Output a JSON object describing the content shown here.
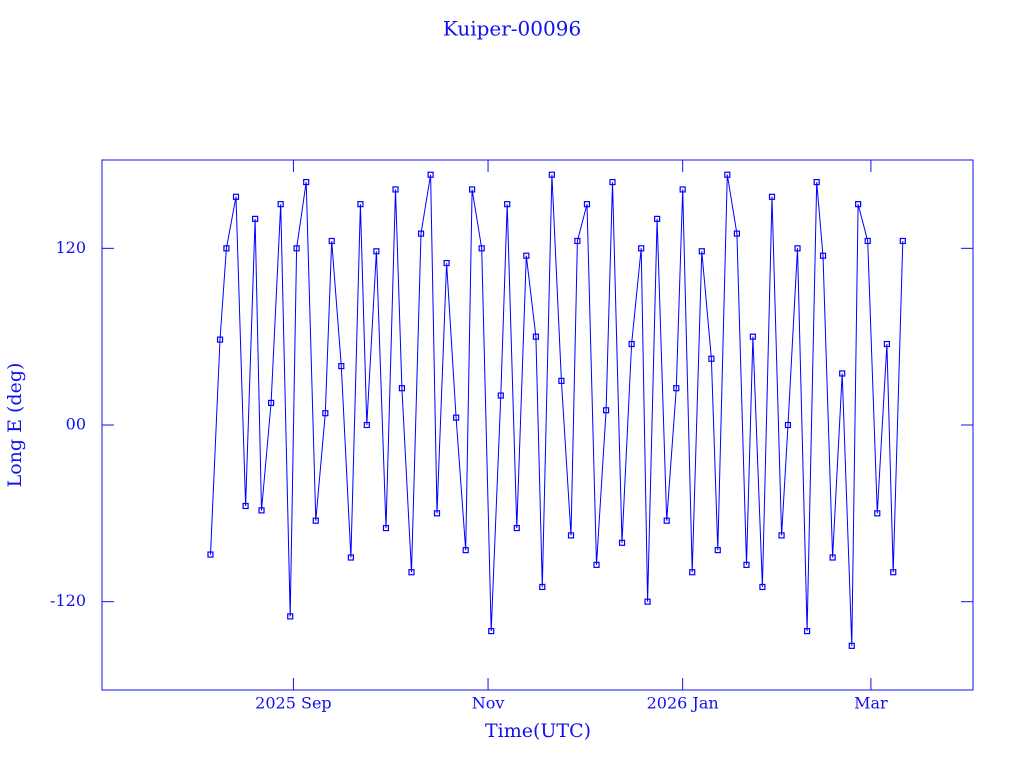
{
  "chart_data": {
    "type": "line",
    "title": "Kuiper-00096",
    "xlabel": "Time(UTC)",
    "ylabel": "Long E (deg)",
    "color": "#0000ff",
    "xlim": [
      -60,
      213
    ],
    "xticks": [
      {
        "value": 0,
        "label": "2025 Sep"
      },
      {
        "value": 61,
        "label": "Nov"
      },
      {
        "value": 122,
        "label": "2026 Jan"
      },
      {
        "value": 181,
        "label": "Mar"
      }
    ],
    "ylim": [
      -180,
      180
    ],
    "yticks": [
      -120,
      {
        "value": 0,
        "label": "00"
      },
      120
    ],
    "x": [
      -26,
      -23,
      -21,
      -18,
      -15,
      -12,
      -10,
      -7,
      -4,
      -1,
      1,
      4,
      7,
      10,
      12,
      15,
      18,
      21,
      23,
      26,
      29,
      32,
      34,
      37,
      40,
      43,
      45,
      48,
      51,
      54,
      56,
      59,
      62,
      65,
      67,
      70,
      73,
      76,
      78,
      81,
      84,
      87,
      89,
      92,
      95,
      98,
      100,
      103,
      106,
      109,
      111,
      114,
      117,
      120,
      122,
      125,
      128,
      131,
      133,
      136,
      139,
      142,
      144,
      147,
      150,
      153,
      155,
      158,
      161,
      164,
      166,
      169,
      172,
      175,
      177,
      180,
      183,
      186,
      188,
      191
    ],
    "values": [
      -88,
      58,
      120,
      155,
      -55,
      140,
      -58,
      15,
      150,
      -130,
      120,
      165,
      -65,
      8,
      125,
      40,
      -90,
      150,
      0,
      118,
      -70,
      160,
      25,
      -100,
      130,
      170,
      -60,
      110,
      5,
      -85,
      160,
      120,
      -140,
      20,
      150,
      -70,
      115,
      60,
      -110,
      170,
      30,
      -75,
      125,
      150,
      -95,
      10,
      165,
      -80,
      55,
      120,
      -120,
      140,
      -65,
      25,
      160,
      -100,
      118,
      45,
      -85,
      170,
      130,
      -95,
      60,
      -110,
      155,
      -75,
      0,
      120,
      -140,
      165,
      115,
      -90,
      35,
      -150,
      150,
      125,
      -60,
      55,
      -100,
      125
    ]
  }
}
